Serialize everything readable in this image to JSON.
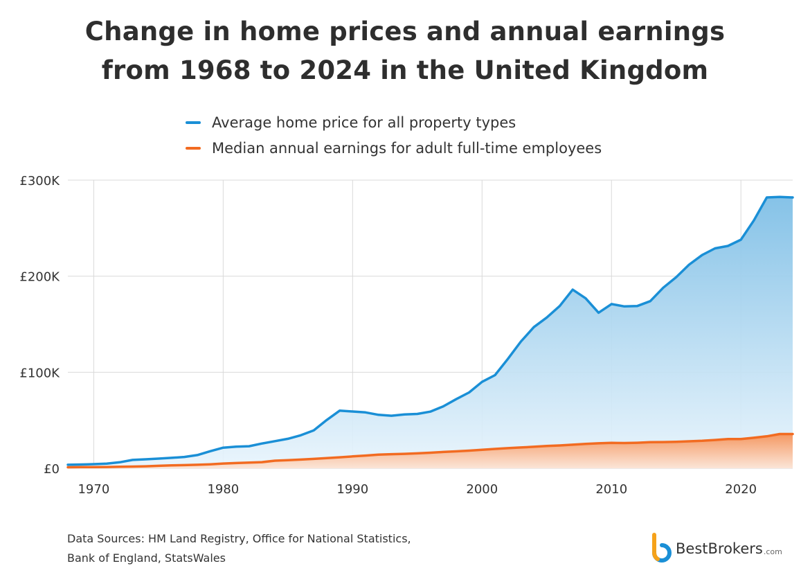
{
  "chart_data": {
    "type": "area",
    "title": "Change in home prices and annual earnings\nfrom 1968 to 2024 in the United Kingdom",
    "xlim": [
      1968,
      2024
    ],
    "ylim": [
      0,
      300000
    ],
    "x_ticks": [
      1970,
      1980,
      1990,
      2000,
      2010,
      2020
    ],
    "y_ticks": [
      {
        "value": 0,
        "label": "£0"
      },
      {
        "value": 100000,
        "label": "£100K"
      },
      {
        "value": 200000,
        "label": "£200K"
      },
      {
        "value": 300000,
        "label": "£300K"
      }
    ],
    "grid": true,
    "legend_position": "top",
    "series": [
      {
        "name": "Average home price for all property types",
        "color": "#1a8fd6",
        "x": [
          1968,
          1969,
          1970,
          1971,
          1972,
          1973,
          1974,
          1975,
          1976,
          1977,
          1978,
          1979,
          1980,
          1981,
          1982,
          1983,
          1984,
          1985,
          1986,
          1987,
          1988,
          1989,
          1990,
          1991,
          1992,
          1993,
          1994,
          1995,
          1996,
          1997,
          1998,
          1999,
          2000,
          2001,
          2002,
          2003,
          2004,
          2005,
          2006,
          2007,
          2008,
          2009,
          2010,
          2011,
          2012,
          2013,
          2014,
          2015,
          2016,
          2017,
          2018,
          2019,
          2020,
          2021,
          2022,
          2023,
          2024
        ],
        "values": [
          3700,
          4000,
          4300,
          4800,
          6300,
          8700,
          9400,
          10100,
          10900,
          11800,
          13800,
          17800,
          21500,
          22600,
          23000,
          25800,
          28300,
          30700,
          34400,
          39500,
          50300,
          60000,
          59100,
          58200,
          55700,
          54700,
          56000,
          56600,
          59000,
          64500,
          72000,
          79000,
          90000,
          97000,
          114000,
          132000,
          147000,
          157000,
          169000,
          186000,
          177000,
          162000,
          171000,
          168500,
          169000,
          174000,
          188000,
          199000,
          212000,
          222000,
          229000,
          231500,
          238000,
          258000,
          282000,
          282500,
          282000
        ]
      },
      {
        "name": "Median annual earnings for adult full-time employees",
        "color": "#f26b21",
        "x": [
          1968,
          1969,
          1970,
          1971,
          1972,
          1973,
          1974,
          1975,
          1976,
          1977,
          1978,
          1979,
          1980,
          1981,
          1982,
          1983,
          1984,
          1985,
          1986,
          1987,
          1988,
          1989,
          1990,
          1991,
          1992,
          1993,
          1994,
          1995,
          1996,
          1997,
          1998,
          1999,
          2000,
          2001,
          2002,
          2003,
          2004,
          2005,
          2006,
          2007,
          2008,
          2009,
          2010,
          2011,
          2012,
          2013,
          2014,
          2015,
          2016,
          2017,
          2018,
          2019,
          2020,
          2021,
          2022,
          2023,
          2024
        ],
        "values": [
          1100,
          1200,
          1300,
          1400,
          1600,
          1800,
          2100,
          2600,
          3000,
          3300,
          3700,
          4200,
          5000,
          5500,
          5900,
          6400,
          7900,
          8500,
          9100,
          9800,
          10600,
          11500,
          12400,
          13300,
          14200,
          14700,
          15100,
          15600,
          16200,
          17000,
          17700,
          18400,
          19300,
          20200,
          21000,
          21700,
          22400,
          23200,
          23800,
          24600,
          25400,
          26000,
          26500,
          26300,
          26600,
          27200,
          27300,
          27600,
          28100,
          28600,
          29500,
          30400,
          30400,
          31800,
          33300,
          35700,
          35700
        ]
      }
    ]
  },
  "source_text_line1": "Data Sources: HM Land Registry, Office for National Statistics,",
  "source_text_line2": "Bank of England, StatsWales",
  "brand": {
    "name": "BestBrokers",
    "suffix": ".com",
    "logo_colors": [
      "#f6a21a",
      "#1a8fd6"
    ]
  }
}
